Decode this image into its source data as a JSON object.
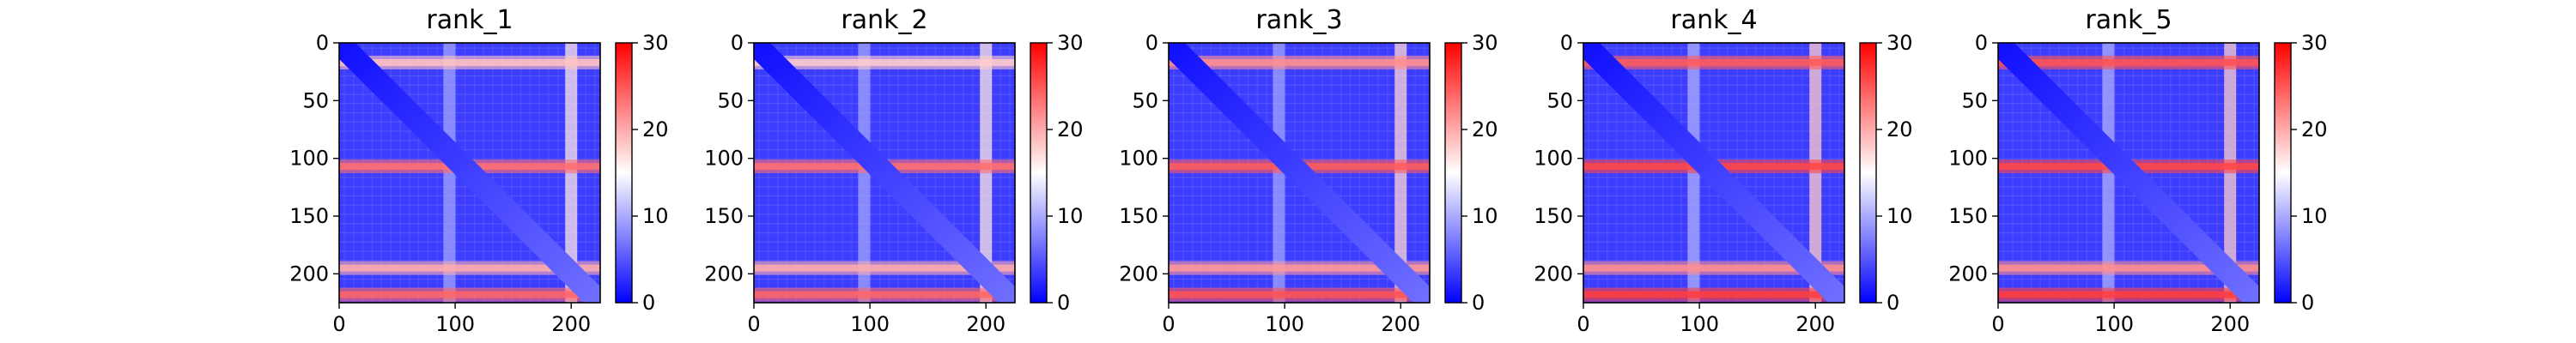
{
  "chart_data": [
    {
      "type": "heatmap",
      "title": "rank_1",
      "xlim": [
        0,
        225
      ],
      "ylim": [
        225,
        0
      ],
      "xticks": [
        0,
        100,
        200
      ],
      "yticks": [
        0,
        50,
        100,
        150,
        200
      ],
      "colorbar": {
        "ticks": [
          0,
          10,
          20,
          30
        ],
        "range": [
          0,
          30
        ],
        "cmap": "bwr"
      },
      "bands": [
        {
          "index": 17,
          "level": 0.62
        },
        {
          "index": 107,
          "level": 0.78
        },
        {
          "index": 195,
          "level": 0.66
        },
        {
          "index": 218,
          "level": 0.8
        }
      ],
      "cols": [
        {
          "index": 95,
          "level": 0.32
        },
        {
          "index": 200,
          "level": 0.55
        }
      ]
    },
    {
      "type": "heatmap",
      "title": "rank_2",
      "xlim": [
        0,
        225
      ],
      "ylim": [
        225,
        0
      ],
      "xticks": [
        0,
        100,
        200
      ],
      "yticks": [
        0,
        50,
        100,
        150,
        200
      ],
      "colorbar": {
        "ticks": [
          0,
          10,
          20,
          30
        ],
        "range": [
          0,
          30
        ],
        "cmap": "bwr"
      },
      "bands": [
        {
          "index": 17,
          "level": 0.6
        },
        {
          "index": 107,
          "level": 0.78
        },
        {
          "index": 195,
          "level": 0.66
        },
        {
          "index": 218,
          "level": 0.8
        }
      ],
      "cols": [
        {
          "index": 95,
          "level": 0.32
        },
        {
          "index": 200,
          "level": 0.55
        }
      ]
    },
    {
      "type": "heatmap",
      "title": "rank_3",
      "xlim": [
        0,
        225
      ],
      "ylim": [
        225,
        0
      ],
      "xticks": [
        0,
        100,
        200
      ],
      "yticks": [
        0,
        50,
        100,
        150,
        200
      ],
      "colorbar": {
        "ticks": [
          0,
          10,
          20,
          30
        ],
        "range": [
          0,
          30
        ],
        "cmap": "bwr"
      },
      "bands": [
        {
          "index": 17,
          "level": 0.72
        },
        {
          "index": 107,
          "level": 0.82
        },
        {
          "index": 195,
          "level": 0.7
        },
        {
          "index": 218,
          "level": 0.84
        }
      ],
      "cols": [
        {
          "index": 95,
          "level": 0.32
        },
        {
          "index": 200,
          "level": 0.58
        }
      ]
    },
    {
      "type": "heatmap",
      "title": "rank_4",
      "xlim": [
        0,
        225
      ],
      "ylim": [
        225,
        0
      ],
      "xticks": [
        0,
        100,
        200
      ],
      "yticks": [
        0,
        50,
        100,
        150,
        200
      ],
      "colorbar": {
        "ticks": [
          0,
          10,
          20,
          30
        ],
        "range": [
          0,
          30
        ],
        "cmap": "bwr"
      },
      "bands": [
        {
          "index": 17,
          "level": 0.82
        },
        {
          "index": 107,
          "level": 0.86
        },
        {
          "index": 195,
          "level": 0.72
        },
        {
          "index": 218,
          "level": 0.88
        }
      ],
      "cols": [
        {
          "index": 95,
          "level": 0.34
        },
        {
          "index": 200,
          "level": 0.6
        }
      ]
    },
    {
      "type": "heatmap",
      "title": "rank_5",
      "xlim": [
        0,
        225
      ],
      "ylim": [
        225,
        0
      ],
      "xticks": [
        0,
        100,
        200
      ],
      "yticks": [
        0,
        50,
        100,
        150,
        200
      ],
      "colorbar": {
        "ticks": [
          0,
          10,
          20,
          30
        ],
        "range": [
          0,
          30
        ],
        "cmap": "bwr"
      },
      "bands": [
        {
          "index": 17,
          "level": 0.84
        },
        {
          "index": 107,
          "level": 0.86
        },
        {
          "index": 195,
          "level": 0.72
        },
        {
          "index": 218,
          "level": 0.88
        }
      ],
      "cols": [
        {
          "index": 95,
          "level": 0.34
        },
        {
          "index": 200,
          "level": 0.6
        }
      ]
    }
  ]
}
